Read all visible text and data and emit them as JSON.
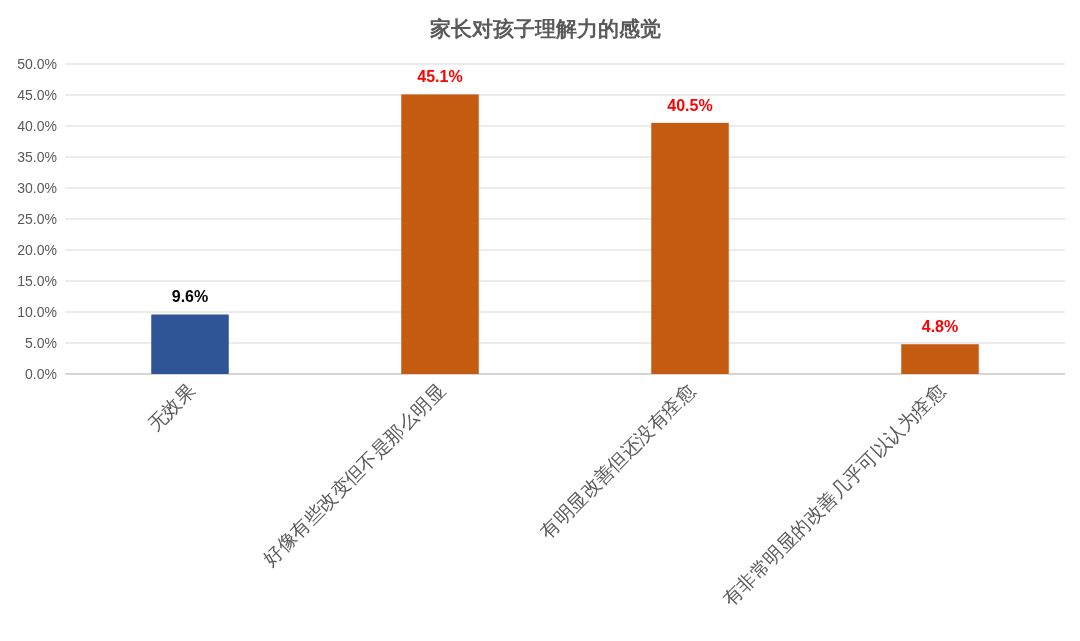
{
  "chart_data": {
    "type": "bar",
    "title": "家长对孩子理解力的感觉",
    "categories": [
      "无效果",
      "好像有些改变但不是那么明显",
      "有明显改善但还没有痊愈",
      "有非常明显的改善几乎可以认为痊愈"
    ],
    "values": [
      9.6,
      45.1,
      40.5,
      4.8
    ],
    "colors": [
      "#2f5597",
      "#c55a11",
      "#c55a11",
      "#c55a11"
    ],
    "value_labels": [
      "9.6%",
      "45.1%",
      "40.5%",
      "4.8%"
    ],
    "ylim": [
      0,
      50
    ],
    "yticks": [
      {
        "value": 0,
        "label": "0.0%"
      },
      {
        "value": 5,
        "label": "5.0%"
      },
      {
        "value": 10,
        "label": "10.0%"
      },
      {
        "value": 15,
        "label": "15.0%"
      },
      {
        "value": 20,
        "label": "20.0%"
      },
      {
        "value": 25,
        "label": "25.0%"
      },
      {
        "value": 30,
        "label": "30.0%"
      },
      {
        "value": 35,
        "label": "35.0%"
      },
      {
        "value": 40,
        "label": "40.0%"
      },
      {
        "value": 45,
        "label": "45.0%"
      },
      {
        "value": 50,
        "label": "50.0%"
      }
    ],
    "grid": "y"
  }
}
